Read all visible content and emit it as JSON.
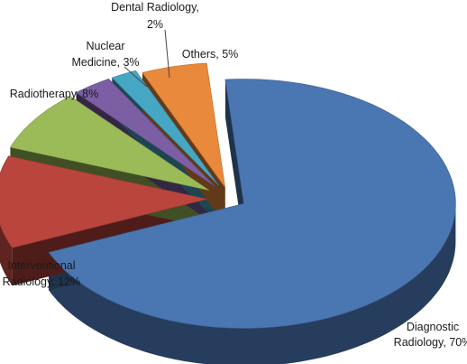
{
  "chart_data": {
    "type": "pie",
    "style": "3d-exploded",
    "title": "",
    "legend": "none",
    "slices": [
      {
        "category": "Diagnostic Radiology",
        "value": 70,
        "label_lines": [
          "Diagnostic",
          "Radiology, 70%"
        ],
        "color": "#4a76b2"
      },
      {
        "category": "Interventional Radiology",
        "value": 12,
        "label_lines": [
          "Interventional",
          "Radiology, 12%"
        ],
        "color": "#b9453d"
      },
      {
        "category": "Radiotherapy",
        "value": 8,
        "label_lines": [
          "Radiotherapy, 8%"
        ],
        "color": "#9bbb59"
      },
      {
        "category": "Nuclear Medicine",
        "value": 3,
        "label_lines": [
          "Nuclear",
          "Medicine, 3%"
        ],
        "color": "#7b5ea3"
      },
      {
        "category": "Dental Radiology",
        "value": 2,
        "label_lines": [
          "Dental Radiology,",
          "2%"
        ],
        "color": "#46a7c4"
      },
      {
        "category": "Others",
        "value": 5,
        "label_lines": [
          "Others, 5%"
        ],
        "color": "#e9893c"
      }
    ]
  }
}
